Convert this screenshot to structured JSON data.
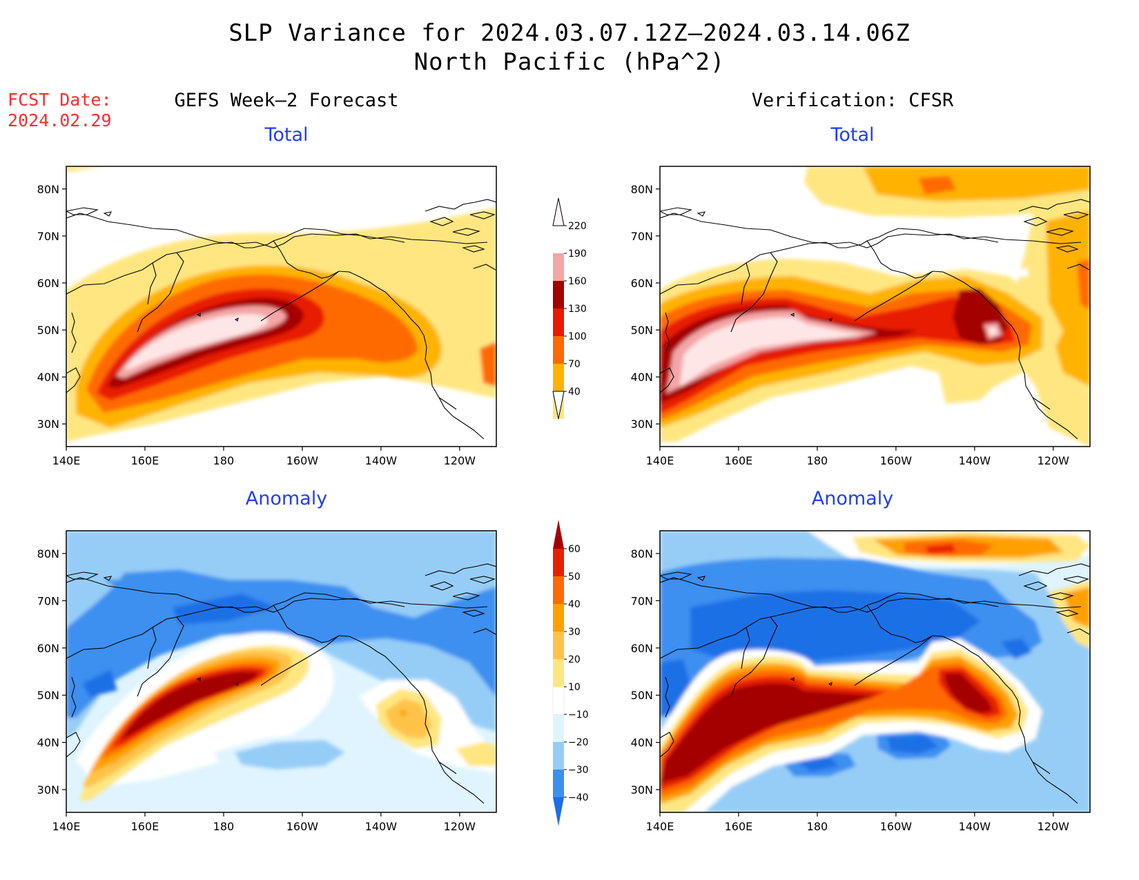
{
  "title_line1": "SLP Variance for 2024.03.07.12Z–2024.03.14.06Z",
  "title_line2": "North Pacific (hPa^2)",
  "fcst_label": "FCST Date:",
  "fcst_date": "2024.02.29",
  "left_column_title": "GEFS Week–2 Forecast",
  "right_column_title": "Verification: CFSR",
  "panel_top_label": "Total",
  "panel_bottom_label": "Anomaly",
  "lon_ticks": [
    "140E",
    "160E",
    "180",
    "160W",
    "140W",
    "120W"
  ],
  "lat_ticks": [
    "30N",
    "40N",
    "50N",
    "60N",
    "70N",
    "80N"
  ],
  "total_colorbar": {
    "labels": [
      "40",
      "70",
      "100",
      "130",
      "160",
      "190",
      "220"
    ],
    "colors": [
      "#ffe680",
      "#ffb200",
      "#ff6a00",
      "#e81a00",
      "#a50000",
      "#f4a5a5",
      "#ffe6e6"
    ]
  },
  "anomaly_colorbar": {
    "labels": [
      "−40",
      "−30",
      "−20",
      "−10",
      "10",
      "20",
      "30",
      "40",
      "50",
      "60"
    ],
    "colors": [
      "#1e6fe6",
      "#3d8ff0",
      "#96cdf7",
      "#dff4ff",
      "#ffffff",
      "#ffe680",
      "#ffc34a",
      "#ffa000",
      "#ff6a00",
      "#e82000",
      "#a50000"
    ]
  },
  "colors": {
    "title_blue": "#1f3dff",
    "fcst_red": "#ff2a2a"
  }
}
